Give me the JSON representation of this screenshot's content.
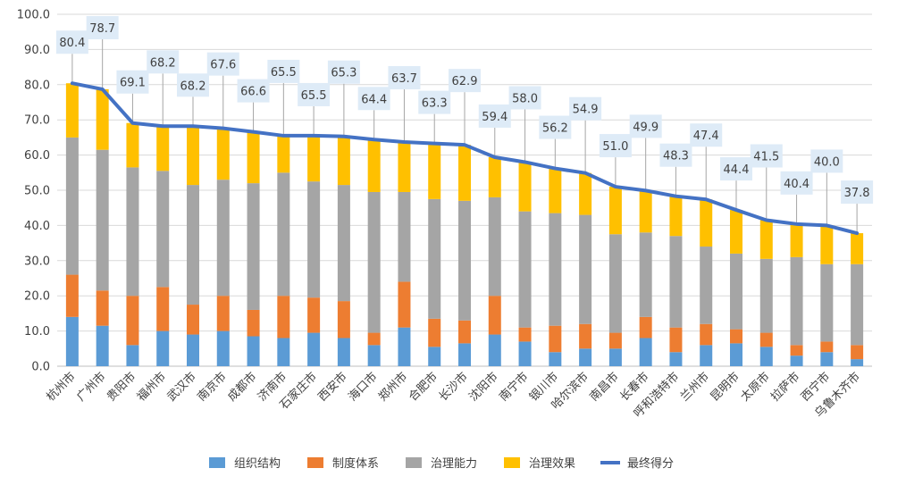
{
  "chart_data": {
    "type": "bar",
    "stacked": true,
    "title": "",
    "xlabel": "",
    "ylabel": "",
    "ylim": [
      0,
      100
    ],
    "ytick_step": 10,
    "ytick_labels": [
      "0.0",
      "10.0",
      "20.0",
      "30.0",
      "40.0",
      "50.0",
      "60.0",
      "70.0",
      "80.0",
      "90.0",
      "100.0"
    ],
    "categories": [
      "杭州市",
      "广州市",
      "贵阳市",
      "福州市",
      "武汉市",
      "南京市",
      "成都市",
      "济南市",
      "石家庄市",
      "西安市",
      "海口市",
      "郑州市",
      "合肥市",
      "长沙市",
      "沈阳市",
      "南宁市",
      "银川市",
      "哈尔滨市",
      "南昌市",
      "长春市",
      "呼和浩特市",
      "兰州市",
      "昆明市",
      "太原市",
      "拉萨市",
      "西宁市",
      "乌鲁木齐市"
    ],
    "series": [
      {
        "name": "组织结构",
        "kind": "bar",
        "color": "#5B9BD5",
        "values": [
          14.0,
          11.5,
          6.0,
          10.0,
          9.0,
          10.0,
          8.5,
          8.0,
          9.5,
          8.0,
          6.0,
          11.0,
          5.5,
          6.5,
          9.0,
          7.0,
          4.0,
          5.0,
          5.0,
          8.0,
          4.0,
          6.0,
          6.5,
          5.5,
          3.0,
          4.0,
          2.0
        ]
      },
      {
        "name": "制度体系",
        "kind": "bar",
        "color": "#ED7D31",
        "values": [
          12.0,
          10.0,
          14.0,
          12.5,
          8.5,
          10.0,
          7.5,
          12.0,
          10.0,
          10.5,
          3.5,
          13.0,
          8.0,
          6.5,
          11.0,
          4.0,
          7.5,
          7.0,
          4.5,
          6.0,
          7.0,
          6.0,
          4.0,
          4.0,
          3.0,
          3.0,
          4.0
        ]
      },
      {
        "name": "治理能力",
        "kind": "bar",
        "color": "#A5A5A5",
        "values": [
          39.0,
          40.0,
          36.5,
          33.0,
          34.0,
          33.0,
          36.0,
          35.0,
          33.0,
          33.0,
          40.0,
          25.5,
          34.0,
          34.0,
          28.0,
          33.0,
          32.0,
          31.0,
          28.0,
          24.0,
          26.0,
          22.0,
          21.5,
          21.0,
          25.0,
          22.0,
          23.0
        ]
      },
      {
        "name": "治理效果",
        "kind": "bar",
        "color": "#FFC000",
        "values": [
          15.4,
          17.2,
          12.6,
          12.7,
          16.7,
          14.6,
          14.6,
          10.5,
          13.0,
          13.8,
          14.9,
          14.2,
          15.8,
          15.9,
          11.4,
          14.0,
          12.7,
          11.9,
          13.5,
          11.9,
          11.3,
          13.4,
          12.4,
          11.0,
          9.4,
          11.0,
          8.8
        ]
      },
      {
        "name": "最终得分",
        "kind": "line",
        "color": "#4472C4",
        "values": [
          80.4,
          78.7,
          69.1,
          68.2,
          68.2,
          67.6,
          66.6,
          65.5,
          65.5,
          65.3,
          64.4,
          63.7,
          63.3,
          62.9,
          59.4,
          58.0,
          56.2,
          54.9,
          51.0,
          49.9,
          48.3,
          47.4,
          44.4,
          41.5,
          40.4,
          40.0,
          37.8
        ],
        "labels": [
          "80.4",
          "78.7",
          "69.1",
          "68.2",
          "68.2",
          "67.6",
          "66.6",
          "65.5",
          "65.5",
          "65.3",
          "64.4",
          "63.7",
          "63.3",
          "62.9",
          "59.4",
          "58.0",
          "56.2",
          "54.9",
          "51.0",
          "49.9",
          "48.3",
          "47.4",
          "44.4",
          "41.5",
          "40.4",
          "40.0",
          "37.8"
        ]
      }
    ],
    "legend": {
      "position": "bottom"
    }
  },
  "colors": {
    "label_box_fill": "#DEEBF7",
    "gridline": "#D9D9D9",
    "axis": "#BFBFBF",
    "leader_line": "#A6A6A6"
  }
}
